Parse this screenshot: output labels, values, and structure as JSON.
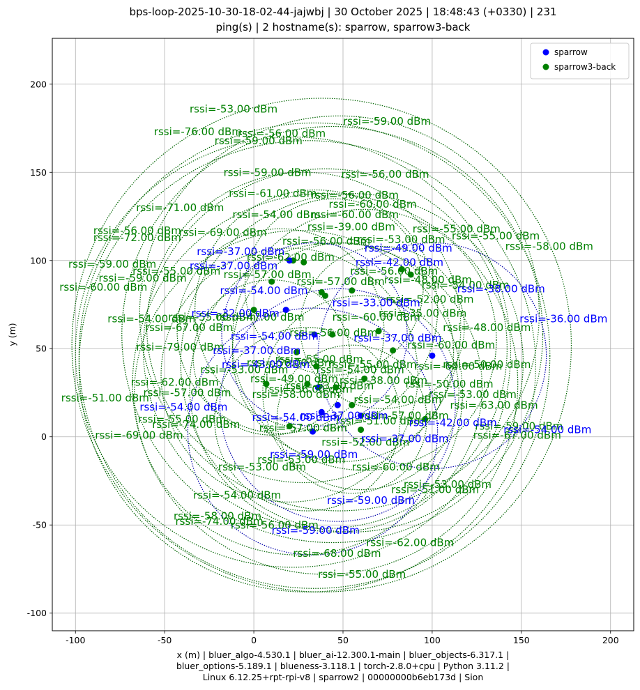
{
  "chart_data": {
    "type": "scatter",
    "title_lines": [
      "bps-loop-2025-10-30-18-02-44-jajwbj | 30 October 2025 | 18:48:43 (+0330) | 231",
      "ping(s) | 2 hostname(s): sparrow, sparrow3-back"
    ],
    "xlabel_lines": [
      "x (m) | bluer_algo-4.530.1 | bluer_ai-12.300.1-main | bluer_objects-6.317.1 |",
      "bluer_options-5.189.1 | blueness-3.118.1 | torch-2.8.0+cpu | Python 3.11.2 |",
      "Linux 6.12.25+rpt-rpi-v8 | sparrow2 | 00000000b6eb173d | Sion"
    ],
    "ylabel": "y (m)",
    "xlim": [
      -113,
      213
    ],
    "ylim": [
      -110,
      226
    ],
    "xticks": [
      -100,
      -50,
      0,
      50,
      100,
      150,
      200
    ],
    "yticks": [
      -100,
      -50,
      0,
      50,
      100,
      150,
      200
    ],
    "grid": true,
    "legend_position": "top-right",
    "series": [
      {
        "name": "sparrow",
        "color": "#0000ff",
        "circle_color": "#0000aa",
        "points": [
          [
            33,
            3
          ],
          [
            34,
            58
          ],
          [
            38,
            14
          ],
          [
            47,
            18
          ],
          [
            60,
            12
          ],
          [
            100,
            46
          ],
          [
            18,
            72
          ],
          [
            20,
            100
          ],
          [
            36,
            28
          ]
        ],
        "circles": [
          {
            "x": 100,
            "y": 46,
            "r": 64
          },
          {
            "x": 47,
            "y": 18,
            "r": 66
          },
          {
            "x": 34,
            "y": 58,
            "r": 52
          },
          {
            "x": 33,
            "y": 3,
            "r": 70
          }
        ],
        "labels": [
          {
            "x": 149,
            "y": 65,
            "text": "rssi=-36.00 dBm"
          },
          {
            "x": 140,
            "y": 2,
            "text": "rssi=-54.00 dBm"
          },
          {
            "x": 41,
            "y": -38,
            "text": "rssi=-59.00 dBm"
          },
          {
            "x": 10,
            "y": -55,
            "text": "rssi=-59.00 dBm"
          },
          {
            "x": 9,
            "y": -12,
            "text": "rssi=-59.00 dBm"
          },
          {
            "x": 87,
            "y": 6,
            "text": "rssi=-42.00 dBm"
          },
          {
            "x": 114,
            "y": 82,
            "text": "rssi=-38.00 dBm"
          },
          {
            "x": -64,
            "y": 15,
            "text": "rssi=-54.00 dBm"
          },
          {
            "x": -32,
            "y": 103,
            "text": "rssi=-37.00 dBm"
          },
          {
            "x": -36,
            "y": 95,
            "text": "rssi=-37.00 dBm"
          },
          {
            "x": -35,
            "y": 68,
            "text": "rssi=-32.00 dBm"
          },
          {
            "x": -13,
            "y": 55,
            "text": "rssi=-54.00 dBm"
          },
          {
            "x": -23,
            "y": 47,
            "text": "rssi=-37.00 dBm"
          },
          {
            "x": -19,
            "y": 81,
            "text": "rssi=-54.00 dBm"
          },
          {
            "x": -18,
            "y": 39,
            "text": "rssi=-43.00 dBm"
          },
          {
            "x": 56,
            "y": 54,
            "text": "rssi=-37.00 dBm"
          },
          {
            "x": 57,
            "y": 97,
            "text": "rssi=-42.00 dBm"
          },
          {
            "x": 62,
            "y": 105,
            "text": "rssi=-49.00 dBm"
          },
          {
            "x": 44,
            "y": 74,
            "text": "rssi=-33.00 dBm"
          },
          {
            "x": -1,
            "y": 9,
            "text": "rssi=-54.00 dBm"
          },
          {
            "x": 60,
            "y": -3,
            "text": "rssi=-37.00 dBm"
          },
          {
            "x": 26,
            "y": 10,
            "text": "rssi=-37.00 dBm"
          }
        ]
      },
      {
        "name": "sparrow3-back",
        "color": "#008000",
        "circle_color": "#006400",
        "points": [
          [
            0,
            72
          ],
          [
            20,
            6
          ],
          [
            22,
            100
          ],
          [
            24,
            48
          ],
          [
            28,
            99
          ],
          [
            30,
            30
          ],
          [
            38,
            82
          ],
          [
            40,
            80
          ],
          [
            44,
            58
          ],
          [
            46,
            28
          ],
          [
            55,
            83
          ],
          [
            60,
            4
          ],
          [
            62,
            33
          ],
          [
            78,
            49
          ],
          [
            83,
            95
          ],
          [
            88,
            92
          ],
          [
            96,
            10
          ],
          [
            7,
            30
          ],
          [
            35,
            40
          ],
          [
            55,
            18
          ],
          [
            70,
            60
          ],
          [
            10,
            88
          ]
        ],
        "circles": [
          {
            "x": 38,
            "y": 52,
            "r": 140
          },
          {
            "x": 30,
            "y": 40,
            "r": 128
          },
          {
            "x": 44,
            "y": 58,
            "r": 118
          },
          {
            "x": 22,
            "y": 48,
            "r": 122
          },
          {
            "x": 40,
            "y": 30,
            "r": 108
          },
          {
            "x": 55,
            "y": 42,
            "r": 96
          },
          {
            "x": 28,
            "y": 62,
            "r": 88
          },
          {
            "x": 46,
            "y": 28,
            "r": 82
          },
          {
            "x": 62,
            "y": 55,
            "r": 74
          },
          {
            "x": 20,
            "y": 35,
            "r": 72
          },
          {
            "x": 35,
            "y": 72,
            "r": 68
          },
          {
            "x": 50,
            "y": 48,
            "r": 62
          },
          {
            "x": 15,
            "y": 60,
            "r": 58
          },
          {
            "x": 60,
            "y": 25,
            "r": 55
          },
          {
            "x": 30,
            "y": 10,
            "r": 52
          },
          {
            "x": 45,
            "y": 85,
            "r": 50
          },
          {
            "x": 72,
            "y": 62,
            "r": 46
          },
          {
            "x": 10,
            "y": 45,
            "r": 44
          },
          {
            "x": 55,
            "y": 10,
            "r": 42
          },
          {
            "x": 40,
            "y": 50,
            "r": 102
          },
          {
            "x": 25,
            "y": 25,
            "r": 92
          },
          {
            "x": 48,
            "y": 70,
            "r": 112
          },
          {
            "x": 34,
            "y": 46,
            "r": 132
          }
        ],
        "labels": [
          {
            "x": -36,
            "y": 184,
            "text": "rssi=-53.00 dBm"
          },
          {
            "x": -56,
            "y": 171,
            "text": "rssi=-76.00 dBm"
          },
          {
            "x": -9,
            "y": 170,
            "text": "rssi=-56.00 dBm"
          },
          {
            "x": -22,
            "y": 166,
            "text": "rssi=-59.00 dBm"
          },
          {
            "x": 50,
            "y": 177,
            "text": "rssi=-59.00 dBm"
          },
          {
            "x": -17,
            "y": 148,
            "text": "rssi=-59.00 dBm"
          },
          {
            "x": 49,
            "y": 147,
            "text": "rssi=-56.00 dBm"
          },
          {
            "x": -14,
            "y": 136,
            "text": "rssi=-61.00 dBm"
          },
          {
            "x": -66,
            "y": 128,
            "text": "rssi=-71.00 dBm"
          },
          {
            "x": -12,
            "y": 124,
            "text": "rssi=-54.00 dBm"
          },
          {
            "x": -90,
            "y": 115,
            "text": "rssi=-56.00 dBm"
          },
          {
            "x": -90,
            "y": 111,
            "text": "rssi=-72.00 dBm"
          },
          {
            "x": -42,
            "y": 114,
            "text": "rssi=-69.00 dBm"
          },
          {
            "x": 89,
            "y": 116,
            "text": "rssi=-55.00 dBm"
          },
          {
            "x": 111,
            "y": 112,
            "text": "rssi=-55.00 dBm"
          },
          {
            "x": 141,
            "y": 106,
            "text": "rssi=-58.00 dBm"
          },
          {
            "x": -104,
            "y": 96,
            "text": "rssi=-59.00 dBm"
          },
          {
            "x": -87,
            "y": 88,
            "text": "rssi=-59.00 dBm"
          },
          {
            "x": -109,
            "y": 83,
            "text": "rssi=-60.00 dBm"
          },
          {
            "x": -68,
            "y": 92,
            "text": "rssi=-55.00 dBm"
          },
          {
            "x": -82,
            "y": 65,
            "text": "rssi=-54.00 dBm"
          },
          {
            "x": -48,
            "y": 66,
            "text": "rssi=-55.00 dBm"
          },
          {
            "x": -61,
            "y": 60,
            "text": "rssi=-67.00 dBm"
          },
          {
            "x": -66,
            "y": 49,
            "text": "rssi=-79.00 dBm"
          },
          {
            "x": -69,
            "y": 29,
            "text": "rssi=-62.00 dBm"
          },
          {
            "x": -108,
            "y": 20,
            "text": "rssi=-51.00 dBm"
          },
          {
            "x": -62,
            "y": 23,
            "text": "rssi=-57.00 dBm"
          },
          {
            "x": -57,
            "y": 5,
            "text": "rssi=-74.00 dBm"
          },
          {
            "x": -89,
            "y": -1,
            "text": "rssi=-69.00 dBm"
          },
          {
            "x": -65,
            "y": 8,
            "text": "rssi=-55.00 dBm"
          },
          {
            "x": -20,
            "y": -19,
            "text": "rssi=-53.00 dBm"
          },
          {
            "x": 2,
            "y": -15,
            "text": "rssi=-53.00 dBm"
          },
          {
            "x": 55,
            "y": -19,
            "text": "rssi=-60.00 dBm"
          },
          {
            "x": 84,
            "y": -29,
            "text": "rssi=-53.00 dBm"
          },
          {
            "x": 77,
            "y": -32,
            "text": "rssi=-51.00 dBm"
          },
          {
            "x": -34,
            "y": -35,
            "text": "rssi=-54.00 dBm"
          },
          {
            "x": -45,
            "y": -47,
            "text": "rssi=-58.00 dBm"
          },
          {
            "x": -44,
            "y": -50,
            "text": "rssi=-74.00 dBm"
          },
          {
            "x": -13,
            "y": -52,
            "text": "rssi=-56.00 dBm"
          },
          {
            "x": 63,
            "y": -62,
            "text": "rssi=-62.00 dBm"
          },
          {
            "x": 22,
            "y": -68,
            "text": "rssi=-68.00 dBm"
          },
          {
            "x": 36,
            "y": -80,
            "text": "rssi=-55.00 dBm"
          },
          {
            "x": 110,
            "y": 16,
            "text": "rssi=-63.00 dBm"
          },
          {
            "x": 124,
            "y": 4,
            "text": "rssi=-59.00 dBm"
          },
          {
            "x": 123,
            "y": -1,
            "text": "rssi=-67.00 dBm"
          },
          {
            "x": 106,
            "y": 39,
            "text": "rssi=-50.00 dBm"
          },
          {
            "x": 106,
            "y": 60,
            "text": "rssi=-48.00 dBm"
          },
          {
            "x": 86,
            "y": 50,
            "text": "rssi=-60.00 dBm"
          },
          {
            "x": 94,
            "y": 84,
            "text": "rssi=-54.00 dBm"
          },
          {
            "x": 42,
            "y": 130,
            "text": "rssi=-60.00 dBm"
          },
          {
            "x": 32,
            "y": 135,
            "text": "rssi=-56.00 dBm"
          },
          {
            "x": 32,
            "y": 124,
            "text": "rssi=-60.00 dBm"
          },
          {
            "x": 30,
            "y": 117,
            "text": "rssi=-39.00 dBm"
          },
          {
            "x": -4,
            "y": 100,
            "text": "rssi=-62.00 dBm"
          },
          {
            "x": -17,
            "y": 90,
            "text": "rssi=-57.00 dBm"
          },
          {
            "x": -21,
            "y": 66,
            "text": "rssi=-47.00 dBm"
          },
          {
            "x": 44,
            "y": 66,
            "text": "rssi=-60.00 dBm"
          },
          {
            "x": 70,
            "y": 68,
            "text": "rssi=-35.00 dBm"
          },
          {
            "x": 73,
            "y": 87,
            "text": "rssi=-48.00 dBm"
          },
          {
            "x": 12,
            "y": 42,
            "text": "rssi=-55.00 dBm"
          },
          {
            "x": 35,
            "y": 36,
            "text": "rssi=-54.00 dBm"
          },
          {
            "x": 18,
            "y": 27,
            "text": "rssi=-53.00 dBm"
          },
          {
            "x": -1,
            "y": 22,
            "text": "rssi=-58.00 dBm"
          },
          {
            "x": -2,
            "y": 31,
            "text": "rssi=-49.00 dBm"
          },
          {
            "x": 48,
            "y": 30,
            "text": "rssi=-38.00 dBm"
          },
          {
            "x": 90,
            "y": 38,
            "text": "rssi=-60.00 dBm"
          },
          {
            "x": 85,
            "y": 28,
            "text": "rssi=-50.00 dBm"
          },
          {
            "x": 42,
            "y": 39,
            "text": "rssi=-55.00 dBm"
          },
          {
            "x": 60,
            "y": 10,
            "text": "rssi=-57.00 dBm"
          },
          {
            "x": 46,
            "y": 7,
            "text": "rssi=-51.00 dBm"
          },
          {
            "x": 38,
            "y": -5,
            "text": "rssi=-52.00 dBm"
          },
          {
            "x": 6,
            "y": 25,
            "text": "rssi=-56.00 dBm"
          },
          {
            "x": -4,
            "y": 40,
            "text": "rssi=-56.00 dBm"
          },
          {
            "x": -30,
            "y": 36,
            "text": "rssi=-53.00 dBm"
          },
          {
            "x": 20,
            "y": 57,
            "text": "rssi=-56.00 dBm"
          },
          {
            "x": 16,
            "y": 109,
            "text": "rssi=-56.00 dBm"
          },
          {
            "x": 58,
            "y": 110,
            "text": "rssi=-53.00 dBm"
          },
          {
            "x": 54,
            "y": 92,
            "text": "rssi=-56.00 dBm"
          },
          {
            "x": 24,
            "y": 86,
            "text": "rssi=-57.00 dBm"
          },
          {
            "x": 74,
            "y": 76,
            "text": "rssi=-52.00 dBm"
          },
          {
            "x": 56,
            "y": 19,
            "text": "rssi=-54.00 dBm"
          },
          {
            "x": 98,
            "y": 22,
            "text": "rssi=-53.00 dBm"
          },
          {
            "x": 3,
            "y": 3,
            "text": "rssi=-57.00 dBm"
          }
        ]
      }
    ]
  }
}
